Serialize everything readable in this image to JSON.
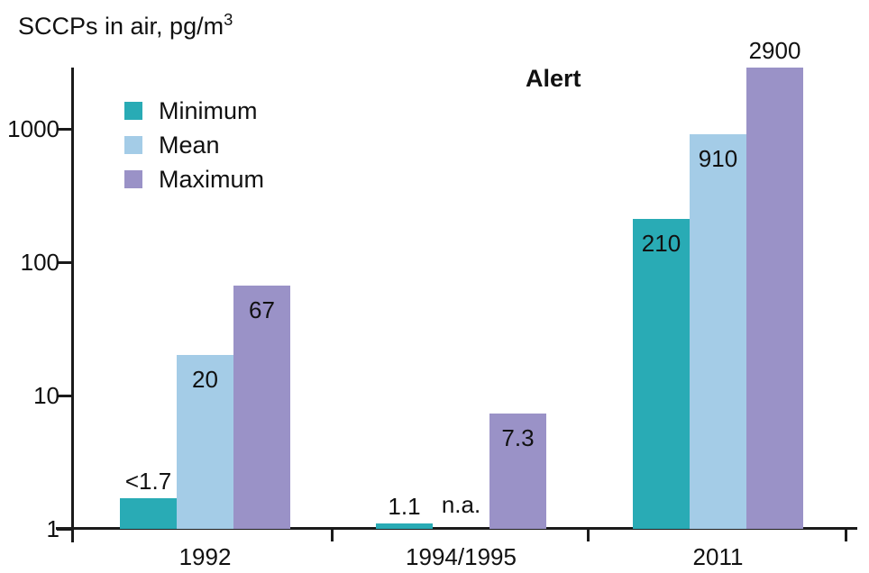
{
  "title": {
    "main": "SCCPs in air, pg/m",
    "sup": "3"
  },
  "chart_data": {
    "type": "bar",
    "title": "SCCPs in air, pg/m³",
    "ylabel": "SCCPs in air, pg/m³",
    "xlabel": "",
    "y_scale": "log",
    "ylim": [
      1,
      4000
    ],
    "y_ticks": [
      1,
      10,
      100,
      1000
    ],
    "y_tick_labels": [
      "1",
      "10",
      "100",
      "1000"
    ],
    "grid": false,
    "legend_position": "upper-left-inside",
    "annotation": "Alert",
    "categories": [
      "1992",
      "1994/1995",
      "2011"
    ],
    "series": [
      {
        "name": "Minimum",
        "color": "#29abb5",
        "values": [
          1.7,
          1.1,
          210
        ],
        "labels": [
          "<1.7",
          "1.1",
          "210"
        ],
        "label_pos": [
          "above",
          "above",
          "inside"
        ]
      },
      {
        "name": "Mean",
        "color": "#a4cce7",
        "values": [
          20,
          null,
          910
        ],
        "labels": [
          "20",
          "n.a.",
          "910"
        ],
        "label_pos": [
          "inside",
          "above",
          "inside"
        ]
      },
      {
        "name": "Maximum",
        "color": "#9a92c7",
        "values": [
          67,
          7.3,
          2900
        ],
        "labels": [
          "67",
          "7.3",
          "2900"
        ],
        "label_pos": [
          "inside",
          "inside",
          "above"
        ]
      }
    ]
  }
}
